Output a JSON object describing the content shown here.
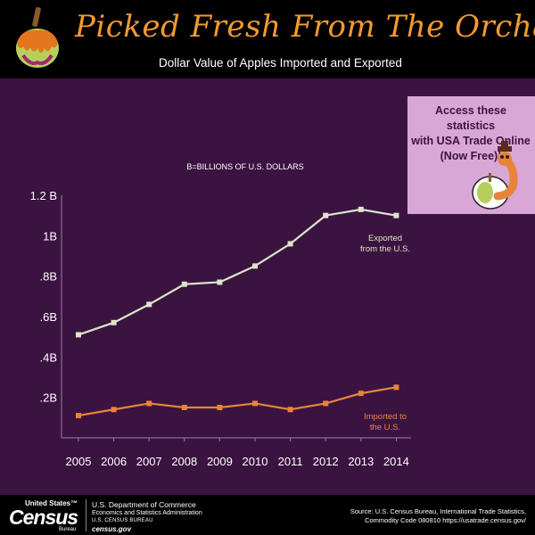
{
  "header": {
    "title": "Picked Fresh From The Orchard",
    "subtitle": "Dollar Value of Apples Imported and Exported"
  },
  "promo": {
    "line1": "Access these statistics",
    "line2": "with USA Trade Online",
    "line3": "(Now Free)!"
  },
  "footer": {
    "census_top": "United States™",
    "census_word": "Census",
    "census_bureau": "Bureau",
    "dept": "U.S. Department of Commerce",
    "esa": "Economics and Statistics Administration",
    "bureau": "U.S. CENSUS BUREAU",
    "censusgov": "census.gov",
    "source_line1": "Source: U.S. Census Bureau, International Trade Statistics,",
    "source_line2": "Commodity Code 080810 https://usatrade.census.gov/"
  },
  "colors": {
    "background": "#3b1340",
    "exported": "#dce6c8",
    "imported": "#e8843a",
    "promo": "#d9a7d6"
  },
  "chart_data": {
    "type": "line",
    "annotation": "B=BILLIONS OF U.S. DOLLARS",
    "x": [
      "2005",
      "2006",
      "2007",
      "2008",
      "2009",
      "2010",
      "2011",
      "2012",
      "2013",
      "2014"
    ],
    "ylim": [
      0,
      1.2
    ],
    "yticks": [
      {
        "value": 0.2,
        "label": ".2B"
      },
      {
        "value": 0.4,
        "label": ".4B"
      },
      {
        "value": 0.6,
        "label": ".6B"
      },
      {
        "value": 0.8,
        "label": ".8B"
      },
      {
        "value": 1.0,
        "label": "1B"
      },
      {
        "value": 1.2,
        "label": "1.2 B"
      }
    ],
    "series": [
      {
        "name_line1": "Exported",
        "name_line2": "from the U.S.",
        "values": [
          0.51,
          0.57,
          0.66,
          0.76,
          0.77,
          0.85,
          0.96,
          1.1,
          1.13,
          1.1
        ]
      },
      {
        "name_line1": "Imported to",
        "name_line2": "the U.S.",
        "values": [
          0.11,
          0.14,
          0.17,
          0.15,
          0.15,
          0.17,
          0.14,
          0.17,
          0.22,
          0.25
        ]
      }
    ]
  }
}
